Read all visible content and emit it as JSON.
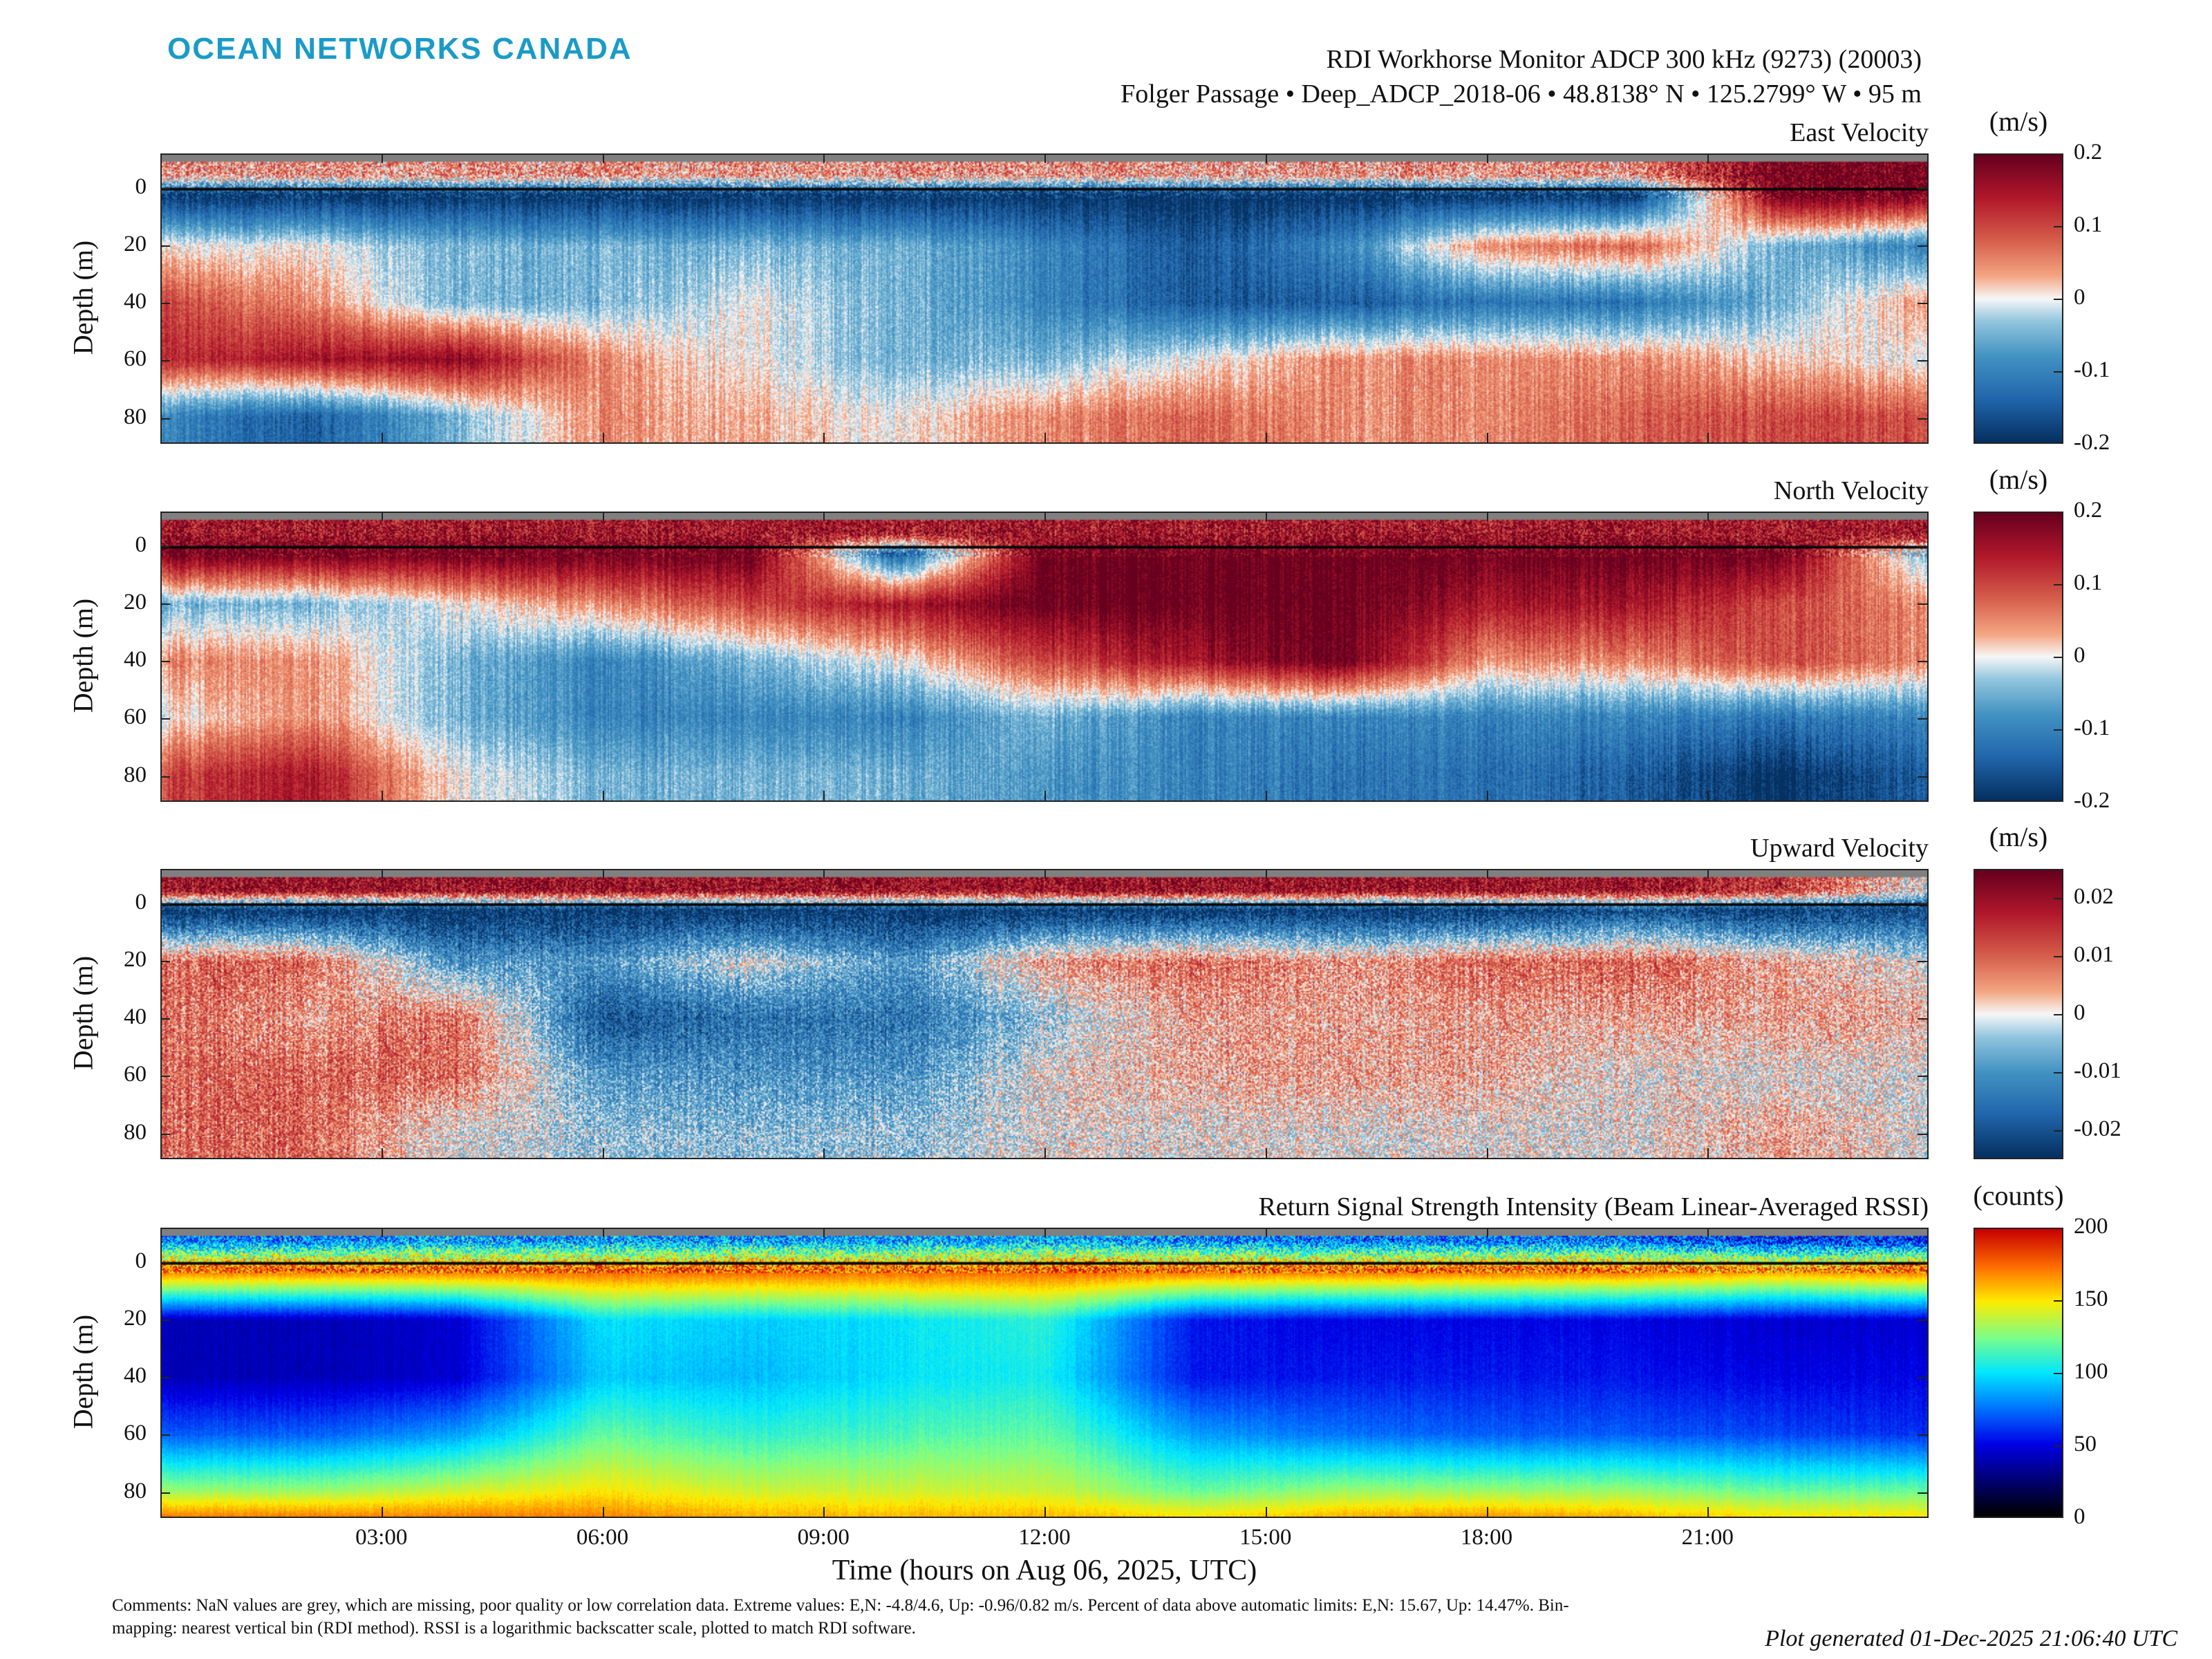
{
  "header": {
    "logo": "OCEAN NETWORKS CANADA",
    "title": "RDI Workhorse Monitor ADCP 300 kHz (9273) (20003)",
    "subtitle": "Folger Passage • Deep_ADCP_2018-06 • 48.8138° N • 125.2799° W • 95 m"
  },
  "footer": {
    "comments": "Comments: NaN values are grey, which are missing, poor quality or low correlation data. Extreme values: E,N: -4.8/4.6, Up: -0.96/0.82 m/s. Percent of data above automatic limits: E,N: 15.67, Up: 14.47%. Bin-mapping: nearest vertical bin (RDI method). RSSI is a logarithmic backscatter scale, plotted to match RDI software.",
    "generated": "Plot generated 01-Dec-2025 21:06:40 UTC"
  },
  "colors": {
    "nan": "#808080",
    "logo": "#1a9bc7"
  },
  "chart_data": [
    {
      "type": "heatmap",
      "title": "East Velocity",
      "ylabel": "Depth (m)",
      "xlabel": "Time (hours on Aug 06, 2025, UTC)",
      "colorbar_label": "(m/s)",
      "colormap": "RdBu_r",
      "clim": [
        -0.2,
        0.2
      ],
      "colorbar_ticks": [
        "0.2",
        "0.1",
        "0",
        "-0.1",
        "-0.2"
      ],
      "colorbar_tick_values": [
        0.2,
        0.1,
        0,
        -0.1,
        -0.2
      ],
      "xlim": [
        0,
        24
      ],
      "ylim": [
        -12,
        89
      ],
      "x_ticks": [
        "03:00",
        "06:00",
        "09:00",
        "12:00",
        "15:00",
        "18:00",
        "21:00"
      ],
      "x_tick_values": [
        3,
        6,
        9,
        12,
        15,
        18,
        21
      ],
      "y_ticks": [
        "0",
        "20",
        "40",
        "60",
        "80"
      ],
      "y_tick_values": [
        0,
        20,
        40,
        60,
        80
      ],
      "grid_hours": [
        0,
        2,
        4,
        6,
        8,
        10,
        12,
        14,
        16,
        18,
        20,
        22,
        24
      ],
      "grid_depths": [
        -5,
        2,
        20,
        40,
        60,
        80
      ],
      "values": [
        [
          0.05,
          0.05,
          0.05,
          0.05,
          0.05,
          0.05,
          0.05,
          0.05,
          0.05,
          0.05,
          0.05,
          0.2,
          0.2
        ],
        [
          -0.2,
          -0.2,
          -0.2,
          -0.2,
          -0.2,
          -0.2,
          -0.2,
          -0.2,
          -0.2,
          -0.2,
          -0.2,
          0.2,
          0.2
        ],
        [
          0,
          0,
          -0.05,
          -0.05,
          -0.05,
          -0.05,
          -0.1,
          -0.15,
          -0.1,
          0.05,
          0.08,
          -0.05,
          -0.1
        ],
        [
          0.1,
          0.05,
          -0.05,
          -0.05,
          0,
          -0.05,
          -0.1,
          -0.15,
          -0.15,
          -0.12,
          -0.12,
          -0.05,
          0.05
        ],
        [
          0.12,
          0.15,
          0.17,
          0.05,
          0,
          -0.05,
          -0.05,
          0,
          0.05,
          0.05,
          0.05,
          0.02,
          0
        ],
        [
          -0.1,
          -0.15,
          -0.05,
          0.05,
          0.03,
          0,
          0.05,
          0.08,
          0.05,
          0.05,
          0.08,
          0.1,
          0.1
        ]
      ]
    },
    {
      "type": "heatmap",
      "title": "North Velocity",
      "ylabel": "Depth (m)",
      "colorbar_label": "(m/s)",
      "colormap": "RdBu_r",
      "clim": [
        -0.2,
        0.2
      ],
      "colorbar_ticks": [
        "0.2",
        "0.1",
        "0",
        "-0.1",
        "-0.2"
      ],
      "colorbar_tick_values": [
        0.2,
        0.1,
        0,
        -0.1,
        -0.2
      ],
      "xlim": [
        0,
        24
      ],
      "ylim": [
        -12,
        89
      ],
      "x_tick_values": [
        3,
        6,
        9,
        12,
        15,
        18,
        21
      ],
      "y_ticks": [
        "0",
        "20",
        "40",
        "60",
        "80"
      ],
      "y_tick_values": [
        0,
        20,
        40,
        60,
        80
      ],
      "grid_hours": [
        0,
        2,
        4,
        6,
        8,
        10,
        12,
        14,
        16,
        18,
        20,
        22,
        24
      ],
      "grid_depths": [
        -5,
        2,
        20,
        40,
        60,
        80
      ],
      "values": [
        [
          0.15,
          0.15,
          0.15,
          0.15,
          0.15,
          0.15,
          0.15,
          0.15,
          0.15,
          0.15,
          0.15,
          0.15,
          0.15
        ],
        [
          0.2,
          0.2,
          0.2,
          0.2,
          0.2,
          -0.15,
          0.2,
          0.2,
          0.2,
          0.2,
          0.2,
          0.2,
          -0.05
        ],
        [
          -0.05,
          -0.05,
          0,
          0.05,
          0.1,
          0.15,
          0.2,
          0.2,
          0.2,
          0.15,
          0.15,
          0.1,
          0.05
        ],
        [
          0.05,
          0.05,
          -0.05,
          -0.1,
          -0.05,
          0,
          0.1,
          0.15,
          0.2,
          0.05,
          0.05,
          0.1,
          0.05
        ],
        [
          0,
          0.05,
          -0.05,
          -0.1,
          -0.1,
          -0.1,
          -0.05,
          -0.1,
          -0.1,
          -0.1,
          -0.1,
          -0.12,
          -0.1
        ],
        [
          0.1,
          0.15,
          0,
          -0.05,
          -0.05,
          -0.05,
          -0.08,
          -0.1,
          -0.12,
          -0.12,
          -0.15,
          -0.2,
          -0.15
        ]
      ]
    },
    {
      "type": "heatmap",
      "title": "Upward Velocity",
      "ylabel": "Depth (m)",
      "colorbar_label": "(m/s)",
      "colormap": "RdBu_r",
      "clim": [
        -0.025,
        0.025
      ],
      "colorbar_ticks": [
        "0.02",
        "0.01",
        "0",
        "-0.01",
        "-0.02"
      ],
      "colorbar_tick_values": [
        0.02,
        0.01,
        0,
        -0.01,
        -0.02
      ],
      "xlim": [
        0,
        24
      ],
      "ylim": [
        -12,
        89
      ],
      "x_tick_values": [
        3,
        6,
        9,
        12,
        15,
        18,
        21
      ],
      "y_ticks": [
        "0",
        "20",
        "40",
        "60",
        "80"
      ],
      "y_tick_values": [
        0,
        20,
        40,
        60,
        80
      ],
      "grid_hours": [
        0,
        2,
        4,
        6,
        8,
        10,
        12,
        14,
        16,
        18,
        20,
        22,
        24
      ],
      "grid_depths": [
        -5,
        2,
        20,
        40,
        60,
        80
      ],
      "values": [
        [
          0.02,
          0.02,
          0.02,
          0.02,
          0.02,
          0.02,
          0.02,
          0.02,
          0.02,
          0.02,
          0.02,
          0.015,
          0.0
        ],
        [
          -0.025,
          -0.025,
          -0.025,
          -0.025,
          -0.025,
          -0.025,
          -0.025,
          -0.025,
          -0.025,
          -0.025,
          -0.02,
          -0.025,
          -0.02
        ],
        [
          0.01,
          0.01,
          -0.01,
          -0.01,
          0,
          -0.01,
          0.005,
          0.01,
          0.005,
          0.01,
          0.01,
          0.005,
          0
        ],
        [
          0.01,
          0.005,
          0.01,
          -0.02,
          -0.015,
          -0.015,
          -0.005,
          0.005,
          0.005,
          0.005,
          0.005,
          0.005,
          0.005
        ],
        [
          0.01,
          0.01,
          0.01,
          -0.01,
          -0.01,
          -0.01,
          0,
          0.005,
          0.005,
          0.005,
          0,
          0,
          0
        ],
        [
          0.01,
          0.01,
          0,
          -0.005,
          -0.005,
          -0.005,
          0,
          0,
          0,
          0,
          0,
          0.005,
          0
        ]
      ]
    },
    {
      "type": "heatmap",
      "title": "Return Signal Strength Intensity (Beam Linear-Averaged RSSI)",
      "ylabel": "Depth (m)",
      "colorbar_label": "(counts)",
      "colormap": "jet-black",
      "clim": [
        0,
        200
      ],
      "colorbar_ticks": [
        "200",
        "150",
        "100",
        "50",
        "0"
      ],
      "colorbar_tick_values": [
        200,
        150,
        100,
        50,
        0
      ],
      "xlim": [
        0,
        24
      ],
      "ylim": [
        -12,
        89
      ],
      "x_ticks": [
        "03:00",
        "06:00",
        "09:00",
        "12:00",
        "15:00",
        "18:00",
        "21:00"
      ],
      "x_tick_values": [
        3,
        6,
        9,
        12,
        15,
        18,
        21
      ],
      "y_ticks": [
        "0",
        "20",
        "40",
        "60",
        "80"
      ],
      "y_tick_values": [
        0,
        20,
        40,
        60,
        80
      ],
      "grid_hours": [
        0,
        2,
        4,
        6,
        8,
        10,
        12,
        14,
        16,
        18,
        20,
        22,
        24
      ],
      "grid_depths": [
        -8,
        2,
        20,
        40,
        60,
        80,
        89
      ],
      "values": [
        [
          80,
          80,
          85,
          85,
          85,
          85,
          90,
          80,
          75,
          75,
          75,
          60,
          60
        ],
        [
          180,
          180,
          180,
          180,
          180,
          180,
          180,
          180,
          180,
          180,
          180,
          170,
          180
        ],
        [
          40,
          40,
          45,
          100,
          95,
          100,
          110,
          55,
          50,
          50,
          50,
          45,
          45
        ],
        [
          40,
          40,
          45,
          95,
          90,
          100,
          105,
          55,
          55,
          55,
          55,
          50,
          50
        ],
        [
          70,
          70,
          85,
          120,
          110,
          115,
          120,
          85,
          75,
          70,
          70,
          65,
          60
        ],
        [
          130,
          130,
          140,
          150,
          140,
          140,
          140,
          120,
          130,
          130,
          130,
          120,
          120
        ],
        [
          170,
          170,
          170,
          170,
          160,
          160,
          160,
          150,
          160,
          165,
          160,
          150,
          150
        ]
      ]
    }
  ]
}
